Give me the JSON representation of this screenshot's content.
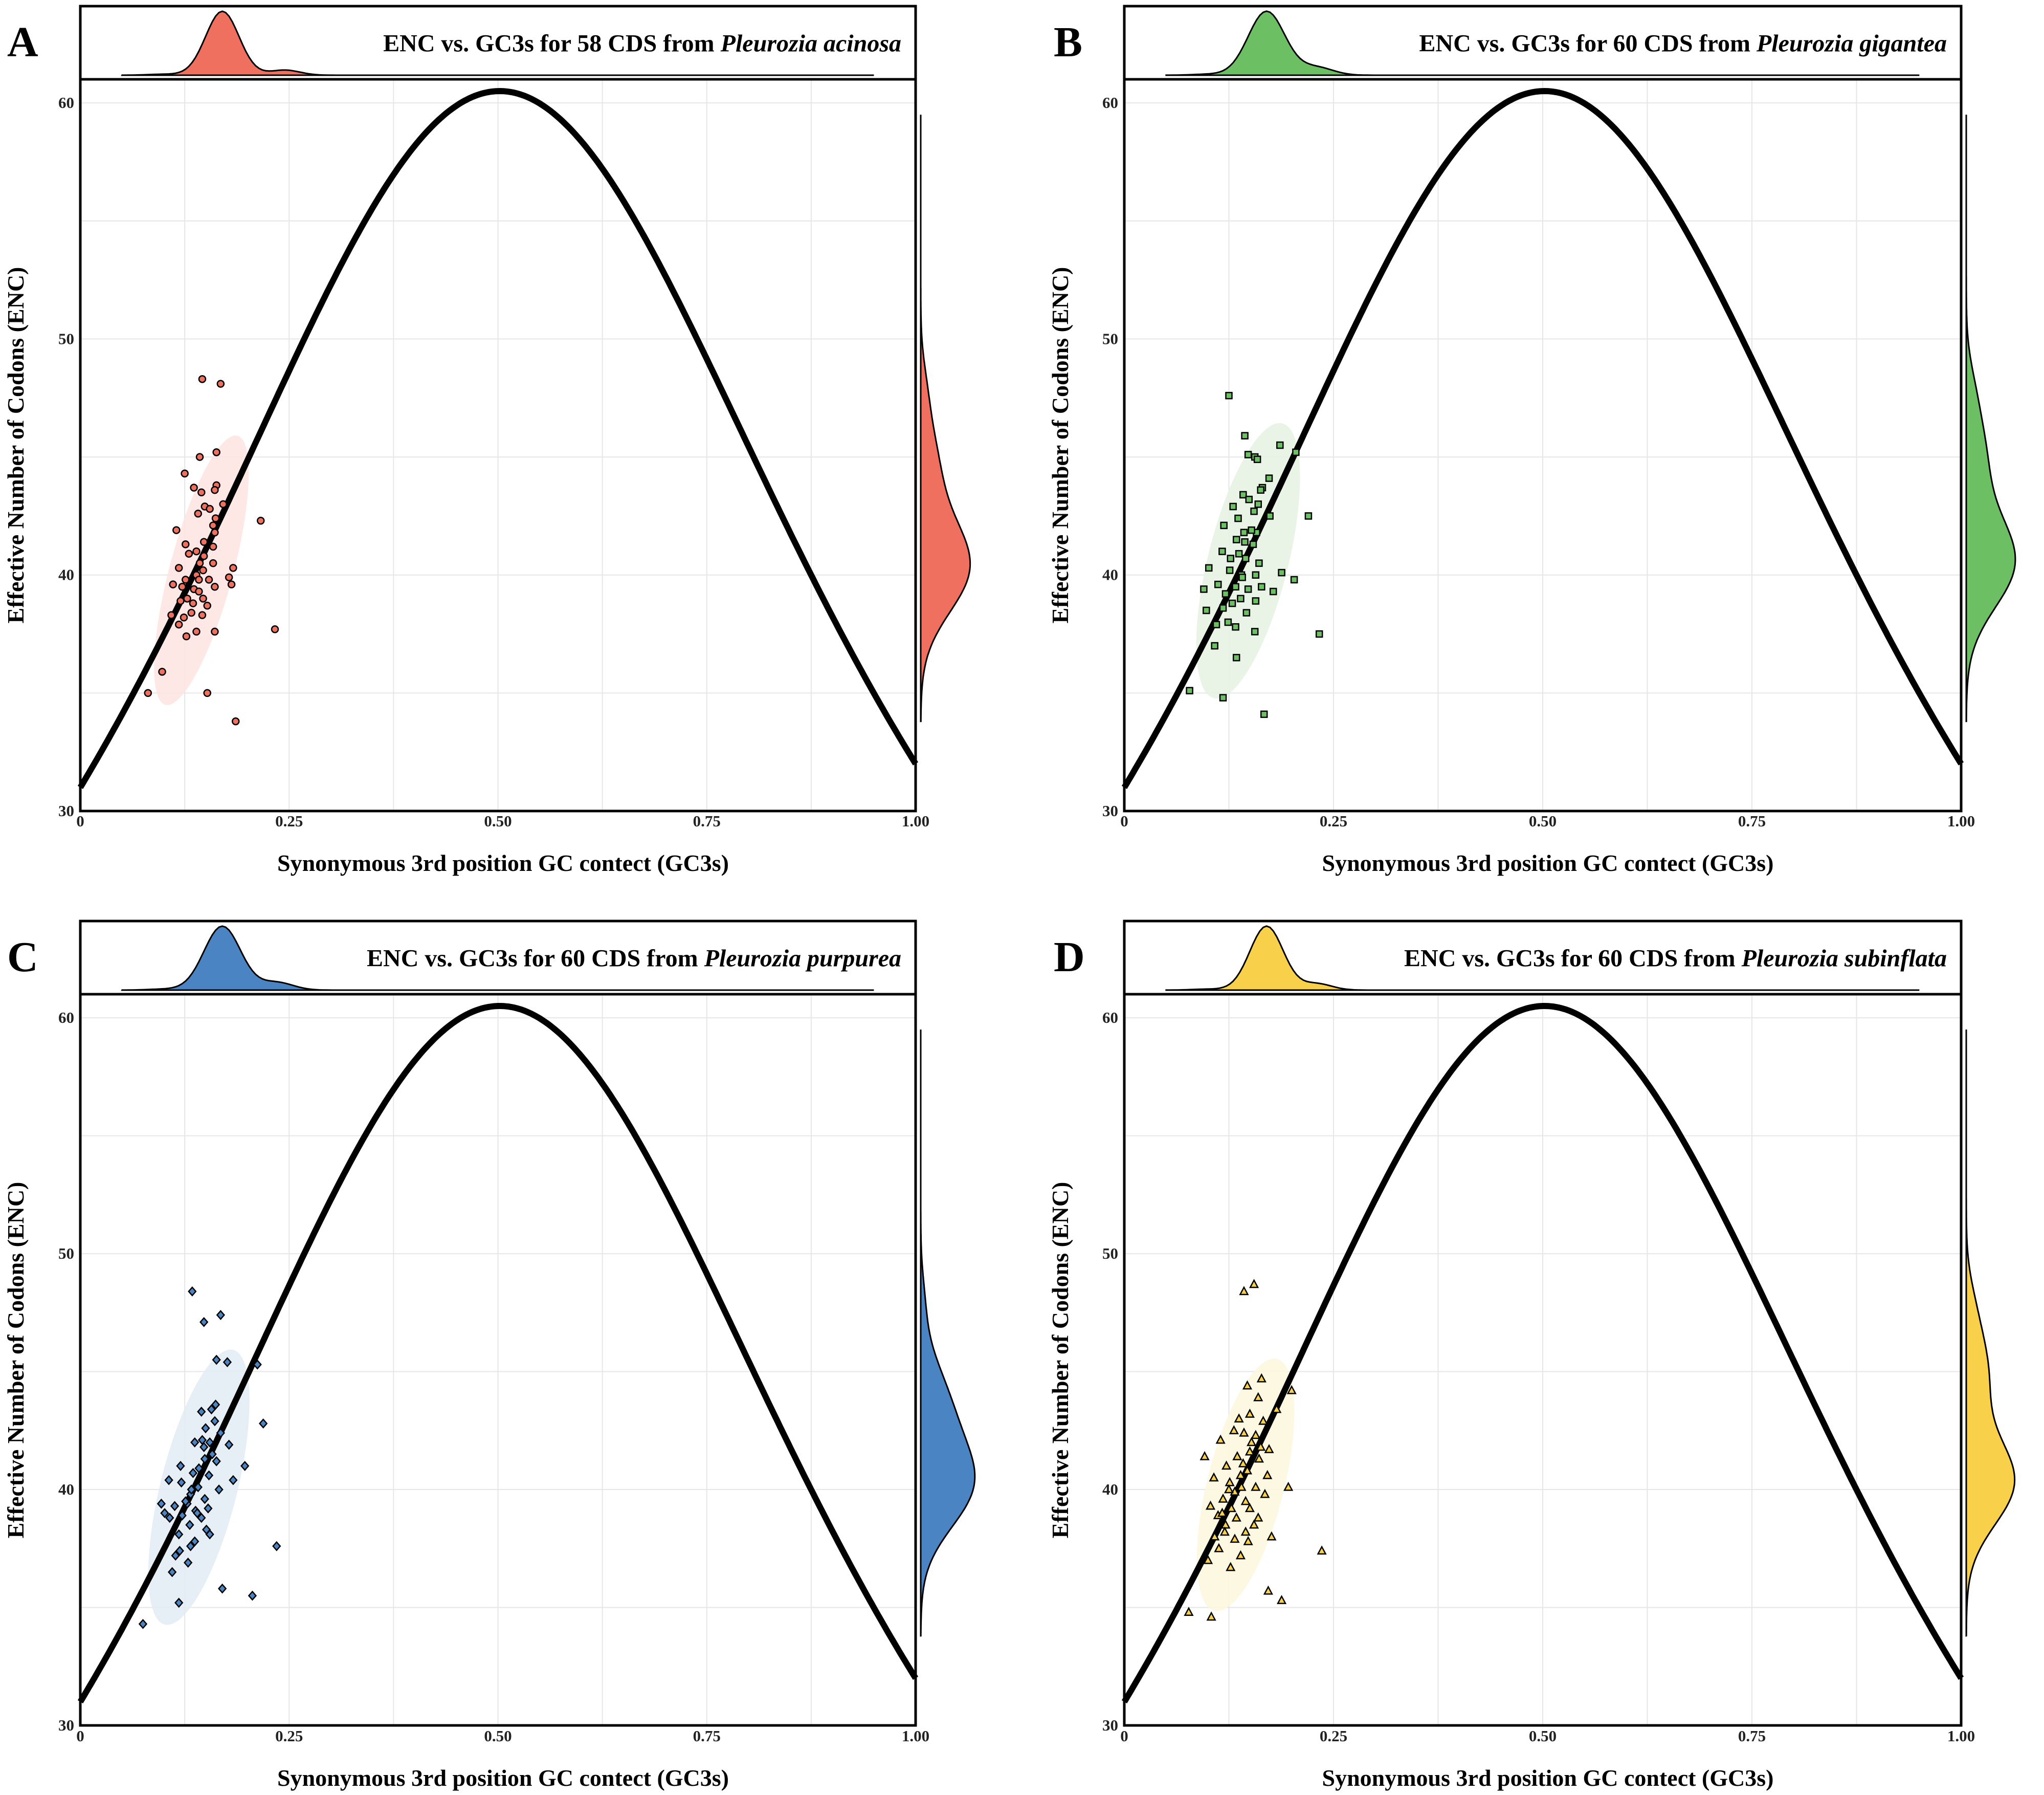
{
  "figure": {
    "xlabel": "Synonymous 3rd position GC contect (GC3s)",
    "ylabel": "Effective Number of Codons (ENC)",
    "x_tick_labels": [
      "0",
      "0.25",
      "0.50",
      "0.75",
      "1.00"
    ],
    "y_tick_labels": [
      "30",
      "40",
      "50",
      "60"
    ]
  },
  "chart_data": [
    {
      "type": "scatter",
      "panel": "A",
      "title_prefix": "ENC vs. GC3s for 58 CDS from",
      "species": "Pleurozia acinosa",
      "xlabel": "Synonymous 3rd position GC contect (GC3s)",
      "ylabel": "Effective Number of Codons (ENC)",
      "xlim": [
        0,
        1
      ],
      "ylim": [
        30,
        61
      ],
      "color": "#f07060",
      "ellipse_color": "#fde4e2",
      "marker": "circle",
      "expected_curve": "ENC = 2 + s + 29/(s^2 + (1-s)^2)",
      "ellipse": {
        "cx": 0.145,
        "cy": 40.2,
        "rx": 0.038,
        "ry": 5.9,
        "angle": 15
      },
      "x_density": {
        "peak": 0.17,
        "sd": 0.02,
        "peak2": 0.245,
        "amp2": 0.08
      },
      "y_density": {
        "peak": 40.3,
        "sd": 1.9,
        "peak2": 44.5,
        "amp2": 0.35
      },
      "points": [
        [
          0.146,
          48.3
        ],
        [
          0.168,
          48.1
        ],
        [
          0.163,
          45.2
        ],
        [
          0.143,
          45.0
        ],
        [
          0.125,
          44.3
        ],
        [
          0.163,
          43.8
        ],
        [
          0.136,
          43.7
        ],
        [
          0.161,
          43.6
        ],
        [
          0.145,
          43.5
        ],
        [
          0.149,
          42.9
        ],
        [
          0.171,
          43.0
        ],
        [
          0.141,
          42.6
        ],
        [
          0.216,
          42.3
        ],
        [
          0.162,
          42.4
        ],
        [
          0.159,
          42.1
        ],
        [
          0.161,
          41.8
        ],
        [
          0.148,
          41.4
        ],
        [
          0.159,
          41.2
        ],
        [
          0.126,
          41.3
        ],
        [
          0.139,
          41.0
        ],
        [
          0.148,
          40.8
        ],
        [
          0.143,
          40.5
        ],
        [
          0.159,
          40.5
        ],
        [
          0.118,
          40.3
        ],
        [
          0.183,
          40.3
        ],
        [
          0.147,
          40.2
        ],
        [
          0.139,
          40.0
        ],
        [
          0.178,
          39.9
        ],
        [
          0.126,
          39.8
        ],
        [
          0.154,
          39.8
        ],
        [
          0.111,
          39.6
        ],
        [
          0.122,
          39.5
        ],
        [
          0.136,
          39.4
        ],
        [
          0.161,
          39.5
        ],
        [
          0.181,
          39.6
        ],
        [
          0.142,
          39.3
        ],
        [
          0.128,
          39.0
        ],
        [
          0.147,
          39.0
        ],
        [
          0.135,
          38.8
        ],
        [
          0.152,
          38.7
        ],
        [
          0.109,
          38.3
        ],
        [
          0.133,
          38.4
        ],
        [
          0.146,
          38.3
        ],
        [
          0.124,
          38.2
        ],
        [
          0.118,
          37.9
        ],
        [
          0.139,
          37.6
        ],
        [
          0.161,
          37.6
        ],
        [
          0.233,
          37.7
        ],
        [
          0.127,
          37.4
        ],
        [
          0.098,
          35.9
        ],
        [
          0.081,
          35.0
        ],
        [
          0.152,
          35.0
        ],
        [
          0.186,
          33.8
        ],
        [
          0.115,
          41.9
        ],
        [
          0.142,
          39.8
        ],
        [
          0.13,
          40.9
        ],
        [
          0.155,
          42.8
        ],
        [
          0.12,
          38.9
        ]
      ]
    },
    {
      "type": "scatter",
      "panel": "B",
      "title_prefix": "ENC vs. GC3s for 60 CDS from",
      "species": "Pleurozia gigantea",
      "xlabel": "Synonymous 3rd position GC contect (GC3s)",
      "ylabel": "Effective Number of Codons (ENC)",
      "xlim": [
        0,
        1
      ],
      "ylim": [
        30,
        61
      ],
      "color": "#6cbf63",
      "ellipse_color": "#e5f2e3",
      "marker": "square",
      "expected_curve": "ENC = 2 + s + 29/(s^2 + (1-s)^2)",
      "ellipse": {
        "cx": 0.148,
        "cy": 40.6,
        "rx": 0.048,
        "ry": 6.0,
        "angle": 14
      },
      "x_density": {
        "peak": 0.17,
        "sd": 0.022,
        "peak2": 0.23,
        "amp2": 0.12
      },
      "y_density": {
        "peak": 40.5,
        "sd": 1.9,
        "peak2": 45.0,
        "amp2": 0.4
      },
      "points": [
        [
          0.125,
          47.6
        ],
        [
          0.144,
          45.9
        ],
        [
          0.148,
          45.1
        ],
        [
          0.156,
          45.0
        ],
        [
          0.159,
          44.9
        ],
        [
          0.186,
          45.5
        ],
        [
          0.205,
          45.2
        ],
        [
          0.173,
          44.1
        ],
        [
          0.165,
          43.7
        ],
        [
          0.142,
          43.4
        ],
        [
          0.149,
          43.2
        ],
        [
          0.163,
          43.6
        ],
        [
          0.13,
          42.9
        ],
        [
          0.155,
          42.7
        ],
        [
          0.174,
          42.5
        ],
        [
          0.22,
          42.5
        ],
        [
          0.119,
          42.1
        ],
        [
          0.143,
          41.8
        ],
        [
          0.158,
          41.8
        ],
        [
          0.134,
          41.5
        ],
        [
          0.144,
          41.4
        ],
        [
          0.154,
          41.3
        ],
        [
          0.117,
          41.0
        ],
        [
          0.137,
          40.9
        ],
        [
          0.145,
          40.7
        ],
        [
          0.161,
          40.5
        ],
        [
          0.101,
          40.3
        ],
        [
          0.126,
          40.2
        ],
        [
          0.14,
          40.0
        ],
        [
          0.157,
          40.0
        ],
        [
          0.188,
          40.1
        ],
        [
          0.203,
          39.8
        ],
        [
          0.112,
          39.6
        ],
        [
          0.133,
          39.5
        ],
        [
          0.148,
          39.4
        ],
        [
          0.164,
          39.5
        ],
        [
          0.095,
          39.4
        ],
        [
          0.121,
          39.2
        ],
        [
          0.139,
          39.0
        ],
        [
          0.157,
          38.9
        ],
        [
          0.178,
          39.3
        ],
        [
          0.129,
          38.8
        ],
        [
          0.098,
          38.5
        ],
        [
          0.146,
          38.4
        ],
        [
          0.124,
          38.0
        ],
        [
          0.11,
          37.9
        ],
        [
          0.133,
          37.8
        ],
        [
          0.156,
          37.6
        ],
        [
          0.233,
          37.5
        ],
        [
          0.108,
          37.0
        ],
        [
          0.134,
          36.5
        ],
        [
          0.078,
          35.1
        ],
        [
          0.118,
          34.8
        ],
        [
          0.167,
          34.1
        ],
        [
          0.152,
          41.9
        ],
        [
          0.136,
          42.4
        ],
        [
          0.127,
          40.7
        ],
        [
          0.141,
          39.9
        ],
        [
          0.16,
          43.0
        ],
        [
          0.118,
          38.6
        ]
      ]
    },
    {
      "type": "scatter",
      "panel": "C",
      "title_prefix": "ENC vs. GC3s for 60 CDS from",
      "species": "Pleurozia purpurea",
      "xlabel": "Synonymous 3rd position GC contect (GC3s)",
      "ylabel": "Effective Number of Codons (ENC)",
      "xlim": [
        0,
        1
      ],
      "ylim": [
        30,
        61
      ],
      "color": "#4a84c2",
      "ellipse_color": "#e2ebf5",
      "marker": "diamond",
      "expected_curve": "ENC = 2 + s + 29/(s^2 + (1-s)^2)",
      "ellipse": {
        "cx": 0.142,
        "cy": 40.1,
        "rx": 0.046,
        "ry": 6.0,
        "angle": 14
      },
      "x_density": {
        "peak": 0.17,
        "sd": 0.022,
        "peak2": 0.235,
        "amp2": 0.12
      },
      "y_density": {
        "peak": 40.1,
        "sd": 1.8,
        "peak2": 43.5,
        "amp2": 0.55
      },
      "points": [
        [
          0.134,
          48.4
        ],
        [
          0.168,
          47.4
        ],
        [
          0.148,
          47.1
        ],
        [
          0.163,
          45.5
        ],
        [
          0.212,
          45.3
        ],
        [
          0.176,
          45.4
        ],
        [
          0.162,
          43.6
        ],
        [
          0.157,
          43.4
        ],
        [
          0.145,
          43.3
        ],
        [
          0.15,
          42.6
        ],
        [
          0.168,
          42.4
        ],
        [
          0.219,
          42.8
        ],
        [
          0.137,
          42.0
        ],
        [
          0.155,
          42.0
        ],
        [
          0.178,
          41.9
        ],
        [
          0.149,
          41.3
        ],
        [
          0.163,
          41.2
        ],
        [
          0.197,
          41.0
        ],
        [
          0.12,
          41.0
        ],
        [
          0.135,
          40.7
        ],
        [
          0.154,
          40.6
        ],
        [
          0.183,
          40.4
        ],
        [
          0.106,
          40.4
        ],
        [
          0.121,
          40.3
        ],
        [
          0.141,
          40.1
        ],
        [
          0.166,
          40.0
        ],
        [
          0.132,
          39.8
        ],
        [
          0.149,
          39.6
        ],
        [
          0.128,
          39.4
        ],
        [
          0.097,
          39.4
        ],
        [
          0.113,
          39.3
        ],
        [
          0.138,
          39.1
        ],
        [
          0.153,
          39.2
        ],
        [
          0.122,
          38.9
        ],
        [
          0.145,
          38.8
        ],
        [
          0.107,
          38.8
        ],
        [
          0.131,
          38.5
        ],
        [
          0.151,
          38.3
        ],
        [
          0.118,
          38.1
        ],
        [
          0.137,
          37.8
        ],
        [
          0.132,
          37.6
        ],
        [
          0.235,
          37.6
        ],
        [
          0.114,
          37.2
        ],
        [
          0.129,
          36.9
        ],
        [
          0.11,
          36.5
        ],
        [
          0.17,
          35.8
        ],
        [
          0.206,
          35.5
        ],
        [
          0.118,
          35.2
        ],
        [
          0.075,
          34.3
        ],
        [
          0.146,
          42.1
        ],
        [
          0.158,
          41.5
        ],
        [
          0.142,
          40.9
        ],
        [
          0.126,
          39.5
        ],
        [
          0.14,
          39.0
        ],
        [
          0.155,
          38.1
        ],
        [
          0.119,
          37.4
        ],
        [
          0.161,
          42.9
        ],
        [
          0.133,
          40.0
        ],
        [
          0.148,
          41.8
        ],
        [
          0.101,
          39.0
        ]
      ]
    },
    {
      "type": "scatter",
      "panel": "D",
      "title_prefix": "ENC vs. GC3s for 60 CDS from",
      "species": "Pleurozia subinflata",
      "xlabel": "Synonymous 3rd position GC contect (GC3s)",
      "ylabel": "Effective Number of Codons (ENC)",
      "xlim": [
        0,
        1
      ],
      "ylim": [
        30,
        61
      ],
      "color": "#f9d04a",
      "ellipse_color": "#fdf7dc",
      "marker": "triangle",
      "expected_curve": "ENC = 2 + s + 29/(s^2 + (1-s)^2)",
      "ellipse": {
        "cx": 0.145,
        "cy": 40.2,
        "rx": 0.046,
        "ry": 5.5,
        "angle": 14
      },
      "x_density": {
        "peak": 0.17,
        "sd": 0.02,
        "peak2": 0.23,
        "amp2": 0.1
      },
      "y_density": {
        "peak": 40.3,
        "sd": 1.8,
        "peak2": 45.0,
        "amp2": 0.45
      },
      "points": [
        [
          0.155,
          48.7
        ],
        [
          0.143,
          48.4
        ],
        [
          0.164,
          44.7
        ],
        [
          0.147,
          44.4
        ],
        [
          0.2,
          44.2
        ],
        [
          0.16,
          43.9
        ],
        [
          0.182,
          43.4
        ],
        [
          0.15,
          43.2
        ],
        [
          0.166,
          42.9
        ],
        [
          0.131,
          42.5
        ],
        [
          0.143,
          42.4
        ],
        [
          0.157,
          42.3
        ],
        [
          0.115,
          42.1
        ],
        [
          0.173,
          41.7
        ],
        [
          0.15,
          41.6
        ],
        [
          0.135,
          41.4
        ],
        [
          0.161,
          41.3
        ],
        [
          0.096,
          41.4
        ],
        [
          0.122,
          41.0
        ],
        [
          0.147,
          40.8
        ],
        [
          0.171,
          40.6
        ],
        [
          0.107,
          40.5
        ],
        [
          0.126,
          40.3
        ],
        [
          0.14,
          40.1
        ],
        [
          0.157,
          40.1
        ],
        [
          0.196,
          40.1
        ],
        [
          0.132,
          39.9
        ],
        [
          0.168,
          39.8
        ],
        [
          0.118,
          39.6
        ],
        [
          0.145,
          39.5
        ],
        [
          0.103,
          39.3
        ],
        [
          0.128,
          39.2
        ],
        [
          0.15,
          39.2
        ],
        [
          0.112,
          38.9
        ],
        [
          0.134,
          38.8
        ],
        [
          0.16,
          38.8
        ],
        [
          0.121,
          38.5
        ],
        [
          0.145,
          38.2
        ],
        [
          0.176,
          38.0
        ],
        [
          0.108,
          38.0
        ],
        [
          0.132,
          37.9
        ],
        [
          0.113,
          37.5
        ],
        [
          0.139,
          37.2
        ],
        [
          0.236,
          37.4
        ],
        [
          0.1,
          37.0
        ],
        [
          0.127,
          36.7
        ],
        [
          0.172,
          35.7
        ],
        [
          0.188,
          35.3
        ],
        [
          0.077,
          34.8
        ],
        [
          0.104,
          34.6
        ],
        [
          0.152,
          42.0
        ],
        [
          0.139,
          40.6
        ],
        [
          0.125,
          40.0
        ],
        [
          0.163,
          41.8
        ],
        [
          0.117,
          39.0
        ],
        [
          0.148,
          37.8
        ],
        [
          0.137,
          43.0
        ],
        [
          0.155,
          38.5
        ],
        [
          0.12,
          38.2
        ],
        [
          0.142,
          41.1
        ]
      ]
    }
  ]
}
